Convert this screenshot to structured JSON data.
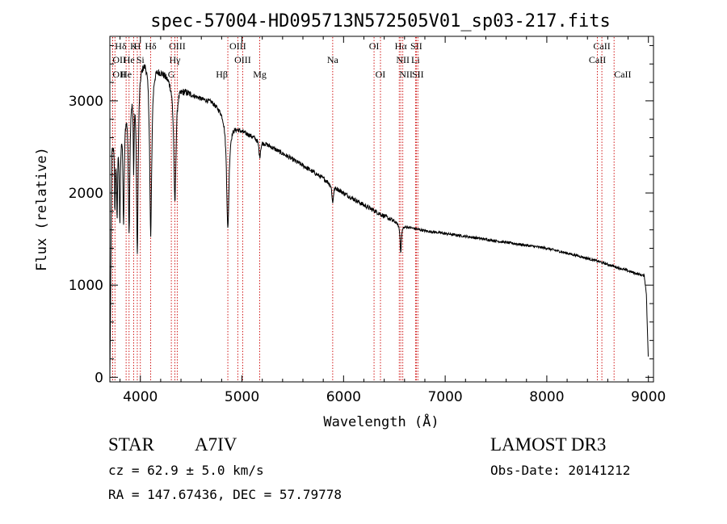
{
  "chart_data": {
    "type": "line",
    "title": "spec-57004-HD095713N572505V01_sp03-217.fits",
    "xlabel": "Wavelength (Å)",
    "ylabel": "Flux (relative)",
    "xlim": [
      3700,
      9050
    ],
    "ylim": [
      -50,
      3700
    ],
    "xticks": [
      4000,
      5000,
      6000,
      7000,
      8000,
      9000
    ],
    "xtick_labels": [
      "4000",
      "5000",
      "6000",
      "7000",
      "8000",
      "9000"
    ],
    "yticks": [
      0,
      1000,
      2000,
      3000
    ],
    "ytick_labels": [
      "0",
      "1000",
      "2000",
      "3000"
    ],
    "grid": false,
    "line_color": "#000000",
    "marker_color": "#cc0000",
    "continuum": [
      [
        3700,
        0
      ],
      [
        3720,
        2500
      ],
      [
        3750,
        2800
      ],
      [
        3800,
        2900
      ],
      [
        3850,
        3000
      ],
      [
        3900,
        3200
      ],
      [
        3950,
        3350
      ],
      [
        4000,
        3450
      ],
      [
        4050,
        3500
      ],
      [
        4100,
        3450
      ],
      [
        4150,
        3400
      ],
      [
        4200,
        3350
      ],
      [
        4300,
        3250
      ],
      [
        4400,
        3150
      ],
      [
        4500,
        3080
      ],
      [
        4600,
        3030
      ],
      [
        4700,
        3000
      ],
      [
        4800,
        2900
      ],
      [
        4900,
        2750
      ],
      [
        5000,
        2680
      ],
      [
        5200,
        2560
      ],
      [
        5400,
        2430
      ],
      [
        5600,
        2300
      ],
      [
        5800,
        2160
      ],
      [
        6000,
        2000
      ],
      [
        6200,
        1870
      ],
      [
        6400,
        1750
      ],
      [
        6600,
        1640
      ],
      [
        6800,
        1590
      ],
      [
        7000,
        1560
      ],
      [
        7200,
        1530
      ],
      [
        7500,
        1480
      ],
      [
        8000,
        1400
      ],
      [
        8300,
        1320
      ],
      [
        8500,
        1260
      ],
      [
        8700,
        1190
      ],
      [
        8900,
        1120
      ],
      [
        8960,
        1100
      ],
      [
        8980,
        900
      ],
      [
        9000,
        150
      ]
    ],
    "absorption_lines": [
      {
        "center": 3750,
        "depth": 900,
        "width": 6
      },
      {
        "center": 3771,
        "depth": 1000,
        "width": 6
      },
      {
        "center": 3798,
        "depth": 1100,
        "width": 7
      },
      {
        "center": 3835,
        "depth": 1200,
        "width": 8
      },
      {
        "center": 3889,
        "depth": 1500,
        "width": 9
      },
      {
        "center": 3934,
        "depth": 900,
        "width": 5
      },
      {
        "center": 3970,
        "depth": 2000,
        "width": 10
      },
      {
        "center": 4102,
        "depth": 1900,
        "width": 12
      },
      {
        "center": 4340,
        "depth": 1300,
        "width": 13
      },
      {
        "center": 4861,
        "depth": 1200,
        "width": 14
      },
      {
        "center": 5175,
        "depth": 180,
        "width": 10
      },
      {
        "center": 5893,
        "depth": 200,
        "width": 8
      },
      {
        "center": 6563,
        "depth": 300,
        "width": 8
      }
    ],
    "line_markers": [
      {
        "label": "Hδ",
        "wavelength": 3750,
        "row": 0,
        "align": "start"
      },
      {
        "label": "K",
        "wavelength": 3934,
        "row": 0,
        "align": "middle"
      },
      {
        "label": "H",
        "wavelength": 3970,
        "row": 0,
        "align": "middle"
      },
      {
        "label": "Hδ",
        "wavelength": 4102,
        "row": 0,
        "align": "middle"
      },
      {
        "label": "OIII",
        "wavelength": 4363,
        "row": 0,
        "align": "middle"
      },
      {
        "label": "OIII",
        "wavelength": 4959,
        "row": 0,
        "align": "middle"
      },
      {
        "label": "OI",
        "wavelength": 6300,
        "row": 0,
        "align": "middle"
      },
      {
        "label": "Hα",
        "wavelength": 6563,
        "row": 0,
        "align": "middle"
      },
      {
        "label": "SII",
        "wavelength": 6716,
        "row": 0,
        "align": "middle"
      },
      {
        "label": "CaII",
        "wavelength": 8542,
        "row": 0,
        "align": "middle"
      },
      {
        "label": "OII",
        "wavelength": 3727,
        "row": 1,
        "align": "start"
      },
      {
        "label": "He",
        "wavelength": 3889,
        "row": 1,
        "align": "middle"
      },
      {
        "label": "Si",
        "wavelength": 4000,
        "row": 1,
        "align": "middle"
      },
      {
        "label": "Hγ",
        "wavelength": 4340,
        "row": 1,
        "align": "middle"
      },
      {
        "label": "OIII",
        "wavelength": 5007,
        "row": 1,
        "align": "middle"
      },
      {
        "label": "Na",
        "wavelength": 5893,
        "row": 1,
        "align": "middle"
      },
      {
        "label": "NII",
        "wavelength": 6583,
        "row": 1,
        "align": "middle"
      },
      {
        "label": "Li",
        "wavelength": 6708,
        "row": 1,
        "align": "middle"
      },
      {
        "label": "CaII",
        "wavelength": 8498,
        "row": 1,
        "align": "middle"
      },
      {
        "label": "OII",
        "wavelength": 3727,
        "row": 2,
        "align": "start"
      },
      {
        "label": "He",
        "wavelength": 3860,
        "row": 2,
        "align": "middle"
      },
      {
        "label": "G",
        "wavelength": 4305,
        "row": 2,
        "align": "middle"
      },
      {
        "label": "Hβ",
        "wavelength": 4861,
        "row": 2,
        "align": "end"
      },
      {
        "label": "Mg",
        "wavelength": 5175,
        "row": 2,
        "align": "middle"
      },
      {
        "label": "OI",
        "wavelength": 6363,
        "row": 2,
        "align": "middle"
      },
      {
        "label": "NII",
        "wavelength": 6548,
        "row": 2,
        "align": "start"
      },
      {
        "label": "SII",
        "wavelength": 6731,
        "row": 2,
        "align": "middle"
      },
      {
        "label": "CaII",
        "wavelength": 8662,
        "row": 2,
        "align": "start"
      }
    ]
  },
  "info": {
    "object_class": "STAR",
    "subclass": "A7IV",
    "survey": "LAMOST DR3",
    "redshift": "cz = 62.9 ± 5.0 km/s",
    "obs_date": "Obs-Date: 20141212",
    "coords": "RA = 147.67436, DEC =  57.79778"
  }
}
